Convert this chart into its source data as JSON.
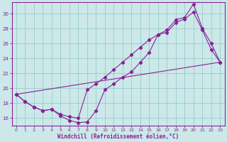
{
  "bg_color": "#cce8e8",
  "grid_color": "#99cccc",
  "line_color": "#882299",
  "xlabel": "Windchill (Refroidissement éolien,°C)",
  "xlim": [
    -0.5,
    23.5
  ],
  "ylim": [
    15.0,
    31.5
  ],
  "yticks": [
    16,
    18,
    20,
    22,
    24,
    26,
    28,
    30
  ],
  "xticks": [
    0,
    1,
    2,
    3,
    4,
    5,
    6,
    7,
    8,
    9,
    10,
    11,
    12,
    13,
    14,
    15,
    16,
    17,
    18,
    19,
    20,
    21,
    22,
    23
  ],
  "line1_x": [
    0,
    1,
    2,
    3,
    4,
    5,
    6,
    7,
    8,
    9,
    10,
    11,
    12,
    13,
    14,
    15,
    16,
    17,
    18,
    19,
    20,
    21,
    22,
    23
  ],
  "line1_y": [
    19.2,
    18.2,
    17.5,
    17.0,
    17.2,
    16.3,
    15.7,
    15.4,
    15.5,
    17.0,
    19.8,
    20.6,
    21.5,
    22.2,
    23.5,
    24.8,
    27.2,
    27.5,
    28.8,
    29.3,
    30.2,
    27.8,
    25.2,
    23.5
  ],
  "line2_x": [
    0,
    1,
    2,
    3,
    4,
    5,
    6,
    7,
    8,
    9,
    10,
    11,
    12,
    13,
    14,
    15,
    16,
    17,
    18,
    19,
    20,
    21,
    22,
    23
  ],
  "line2_y": [
    19.2,
    18.2,
    17.5,
    17.0,
    17.2,
    16.5,
    16.2,
    16.0,
    19.8,
    20.6,
    21.5,
    22.5,
    23.5,
    24.5,
    25.5,
    26.5,
    27.2,
    27.8,
    29.2,
    29.5,
    31.3,
    28.0,
    26.0,
    23.5
  ],
  "line3_x": [
    0,
    23
  ],
  "line3_y": [
    19.2,
    23.5
  ]
}
